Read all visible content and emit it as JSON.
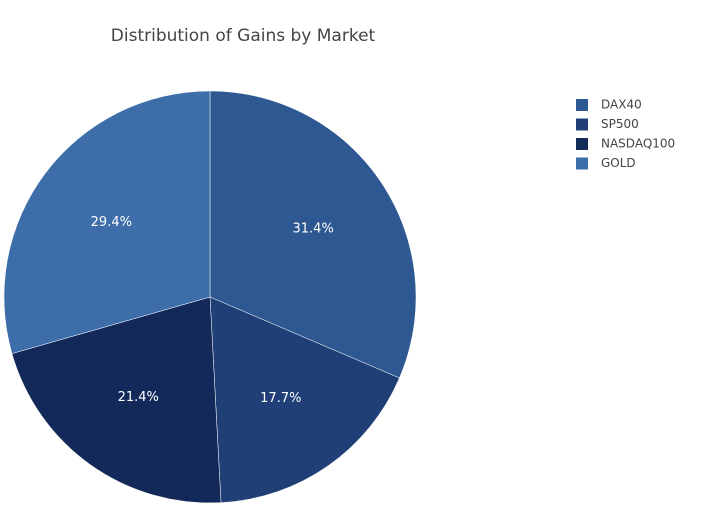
{
  "chart_data": {
    "type": "pie",
    "title": "Distribution of Gains by Market",
    "categories": [
      "DAX40",
      "SP500",
      "NASDAQ100",
      "GOLD"
    ],
    "values": [
      31.4,
      17.7,
      21.4,
      29.4
    ],
    "value_labels": [
      "31.4%",
      "17.7%",
      "21.4%",
      "29.4%"
    ],
    "colors": [
      "#2e5891",
      "#203f77",
      "#13295a",
      "#3d6ea9"
    ]
  }
}
